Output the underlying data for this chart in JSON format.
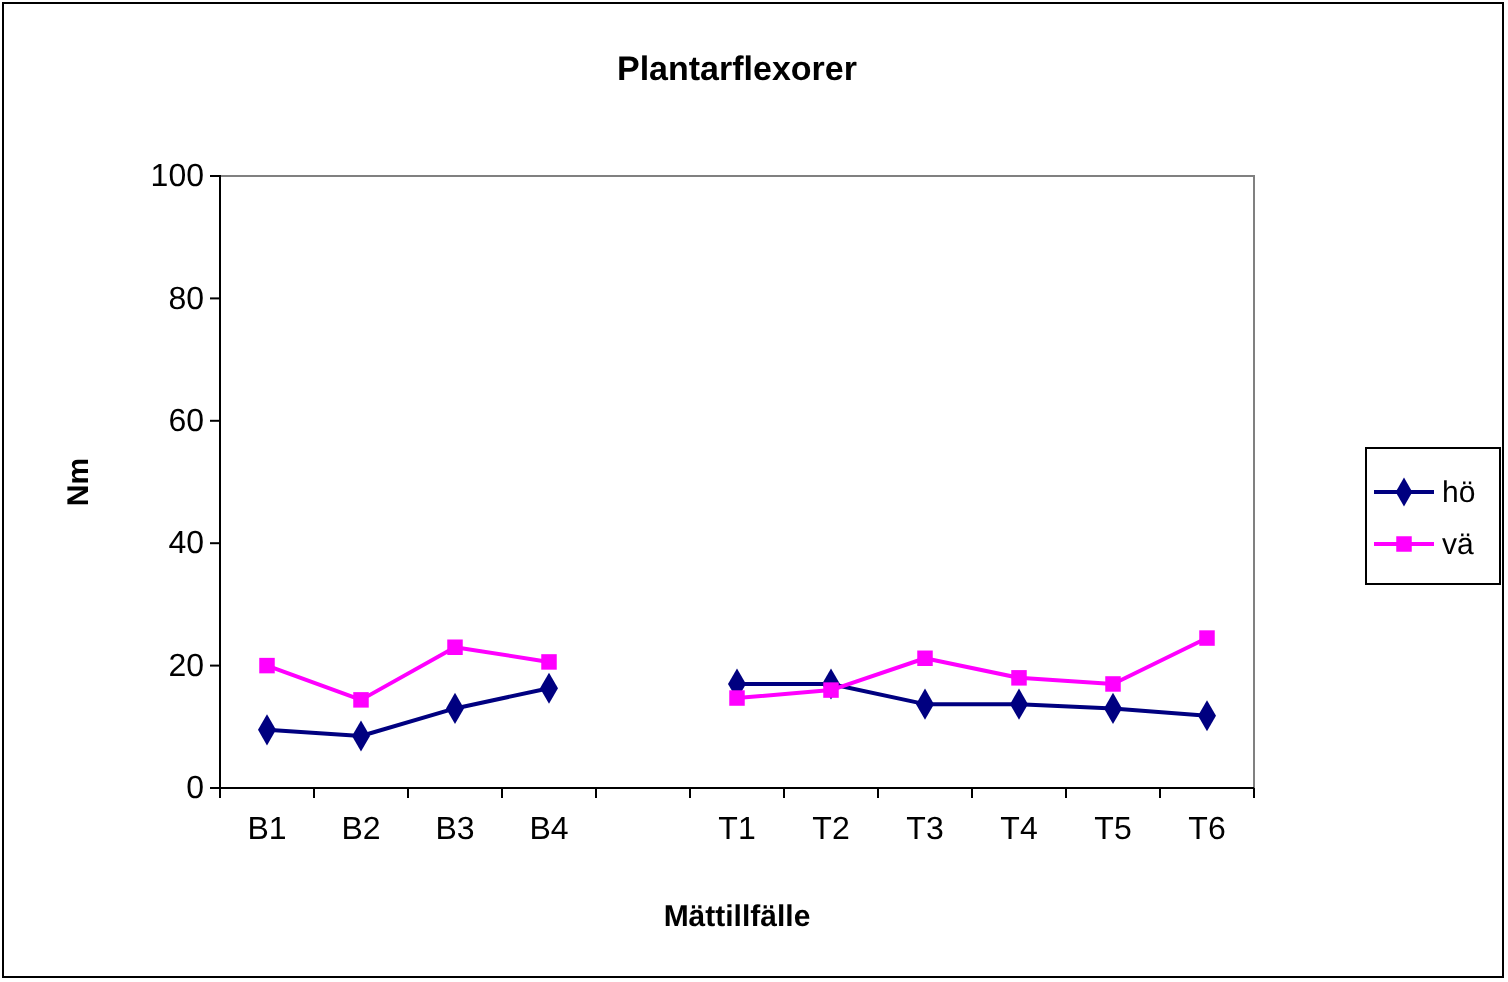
{
  "chart_data": {
    "type": "line",
    "title": "Plantarflexorer",
    "xlabel": "Mättillfälle",
    "ylabel": "Nm",
    "categories": [
      "B1",
      "B2",
      "B3",
      "B4",
      null,
      "T1",
      "T2",
      "T3",
      "T4",
      "T5",
      "T6"
    ],
    "series": [
      {
        "name": "hö",
        "color": "#000080",
        "marker": "diamond",
        "values": [
          9.5,
          8.5,
          13,
          16.3,
          null,
          17,
          17,
          13.7,
          13.7,
          13,
          11.8
        ]
      },
      {
        "name": "vä",
        "color": "#ff00ff",
        "marker": "square",
        "values": [
          20,
          14.4,
          23,
          20.6,
          null,
          14.7,
          16,
          21.2,
          18,
          17,
          24.5
        ]
      }
    ],
    "ylim": [
      0,
      100
    ],
    "yticks": [
      0,
      20,
      40,
      60,
      80,
      100
    ],
    "grid": false,
    "legend": "right",
    "line_style": "solid"
  }
}
